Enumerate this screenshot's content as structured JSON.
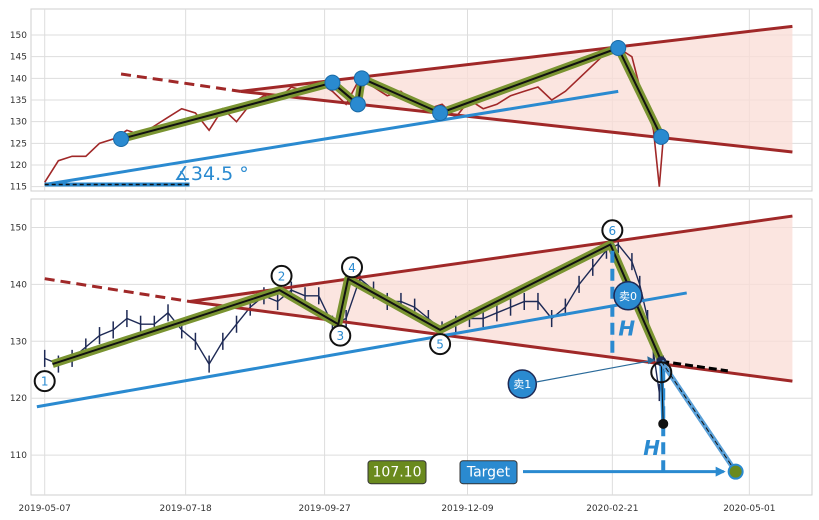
{
  "chart_data": [
    {
      "id": "top",
      "type": "line",
      "ylim": [
        114,
        156
      ],
      "yticks": [
        115,
        120,
        125,
        130,
        135,
        140,
        145,
        150
      ],
      "xlim": [
        "2019-04-30",
        "2020-06-02"
      ],
      "grid": true,
      "angle_label": "∡34.5 °",
      "series": [
        {
          "color": "#a02828",
          "x": [
            "2019-05-07",
            "2019-05-14",
            "2019-05-21",
            "2019-05-28",
            "2019-06-04",
            "2019-06-11",
            "2019-06-18",
            "2019-06-25",
            "2019-07-02",
            "2019-07-09",
            "2019-07-16",
            "2019-07-23",
            "2019-07-30",
            "2019-08-06",
            "2019-08-13",
            "2019-08-20",
            "2019-08-27",
            "2019-09-03",
            "2019-09-10",
            "2019-09-17",
            "2019-09-24",
            "2019-10-01",
            "2019-10-08",
            "2019-10-15",
            "2019-10-22",
            "2019-10-29",
            "2019-11-05",
            "2019-11-12",
            "2019-11-19",
            "2019-11-26",
            "2019-12-03",
            "2019-12-10",
            "2019-12-17",
            "2019-12-24",
            "2019-12-31",
            "2020-01-07",
            "2020-01-14",
            "2020-01-21",
            "2020-01-28",
            "2020-02-04",
            "2020-02-11",
            "2020-02-18",
            "2020-02-24",
            "2020-03-02",
            "2020-03-06",
            "2020-03-10",
            "2020-03-13",
            "2020-03-16",
            "2020-03-18"
          ],
          "values": [
            116,
            121,
            122,
            122,
            125,
            126,
            128,
            127,
            129,
            131,
            133,
            132,
            128,
            133,
            130,
            134,
            136,
            135,
            138,
            137,
            139,
            137,
            134,
            140,
            138,
            136,
            137,
            134,
            133,
            134,
            131,
            135,
            133,
            134,
            136,
            137,
            138,
            135,
            137,
            140,
            143,
            146,
            147,
            145,
            138,
            133,
            128,
            115,
            126
          ]
        }
      ],
      "wave": {
        "x": [
          "2019-06-15",
          "2019-10-01",
          "2019-10-14",
          "2019-10-16",
          "2019-11-25",
          "2020-02-24",
          "2020-03-17"
        ],
        "y": [
          126,
          139,
          134,
          140,
          132,
          147,
          126.5
        ]
      },
      "lines": [
        {
          "kind": "resistance",
          "color": "#a02828",
          "x": [
            "2019-08-15",
            "2020-05-23"
          ],
          "y": [
            137,
            152
          ]
        },
        {
          "kind": "support",
          "color": "#a02828",
          "x": [
            "2019-08-15",
            "2020-05-23"
          ],
          "y": [
            137,
            123
          ]
        },
        {
          "kind": "support-extension",
          "color": "#a02828",
          "dashed": true,
          "x": [
            "2019-06-15",
            "2019-08-15"
          ],
          "y": [
            141,
            137
          ]
        },
        {
          "kind": "trend",
          "color": "#2a8ad0",
          "x": [
            "2019-05-07",
            "2020-02-24"
          ],
          "y": [
            115.5,
            137
          ]
        },
        {
          "kind": "angle-base",
          "color": "#2a8ad0",
          "x": [
            "2019-05-07",
            "2019-07-20"
          ],
          "y": [
            115.5,
            115.5
          ]
        }
      ]
    },
    {
      "id": "bottom",
      "type": "line",
      "ylim": [
        103,
        155
      ],
      "yticks": [
        110,
        120,
        130,
        140,
        150
      ],
      "xlim": [
        "2019-04-30",
        "2020-06-02"
      ],
      "xticks": [
        "2019-05-07",
        "2019-07-18",
        "2019-09-27",
        "2019-12-09",
        "2020-02-21",
        "2020-05-01"
      ],
      "grid": true,
      "price": {
        "color": "#1e2a55",
        "x": [
          "2019-05-07",
          "2019-05-14",
          "2019-05-21",
          "2019-05-28",
          "2019-06-04",
          "2019-06-11",
          "2019-06-18",
          "2019-06-25",
          "2019-07-02",
          "2019-07-09",
          "2019-07-16",
          "2019-07-23",
          "2019-07-30",
          "2019-08-06",
          "2019-08-13",
          "2019-08-20",
          "2019-08-27",
          "2019-09-03",
          "2019-09-10",
          "2019-09-17",
          "2019-09-24",
          "2019-10-01",
          "2019-10-08",
          "2019-10-15",
          "2019-10-22",
          "2019-10-29",
          "2019-11-05",
          "2019-11-12",
          "2019-11-19",
          "2019-11-26",
          "2019-12-03",
          "2019-12-10",
          "2019-12-17",
          "2019-12-24",
          "2019-12-31",
          "2020-01-07",
          "2020-01-14",
          "2020-01-21",
          "2020-01-28",
          "2020-02-04",
          "2020-02-11",
          "2020-02-18",
          "2020-02-24",
          "2020-03-02",
          "2020-03-06",
          "2020-03-10",
          "2020-03-13",
          "2020-03-16",
          "2020-03-18"
        ],
        "values": [
          127,
          126,
          127,
          129,
          131,
          132,
          134,
          133,
          133,
          135,
          132,
          130,
          126,
          130,
          133,
          136,
          138,
          137,
          139,
          138,
          138,
          133,
          134,
          141,
          139,
          137,
          137,
          136,
          134,
          132,
          133,
          134,
          134,
          135,
          136,
          137,
          137,
          134,
          136,
          140,
          143,
          146,
          147,
          144,
          140,
          134,
          128,
          121,
          126
        ]
      },
      "wave": {
        "x": [
          "2019-05-11",
          "2019-09-04",
          "2019-10-04",
          "2019-10-09",
          "2019-11-25",
          "2020-02-20",
          "2020-03-17"
        ],
        "y": [
          126,
          139,
          133,
          141,
          132,
          147,
          126.5
        ]
      },
      "wave_labels": [
        {
          "text": "1",
          "x": "2019-05-07",
          "y": 123
        },
        {
          "text": "2",
          "x": "2019-09-05",
          "y": 141.5
        },
        {
          "text": "3",
          "x": "2019-10-05",
          "y": 131
        },
        {
          "text": "4",
          "x": "2019-10-11",
          "y": 143
        },
        {
          "text": "5",
          "x": "2019-11-25",
          "y": 129.5
        },
        {
          "text": "6",
          "x": "2020-02-21",
          "y": 149.5
        }
      ],
      "lines": [
        {
          "kind": "resistance",
          "color": "#a02828",
          "x": [
            "2019-07-20",
            "2020-05-23"
          ],
          "y": [
            137,
            152
          ]
        },
        {
          "kind": "support",
          "color": "#a02828",
          "x": [
            "2019-07-20",
            "2020-05-23"
          ],
          "y": [
            137,
            123
          ]
        },
        {
          "kind": "support-extension",
          "color": "#a02828",
          "dashed": true,
          "x": [
            "2019-05-07",
            "2019-07-20"
          ],
          "y": [
            141,
            137
          ]
        },
        {
          "kind": "trend",
          "color": "#2a8ad0",
          "x": [
            "2019-05-03",
            "2020-03-30"
          ],
          "y": [
            118.5,
            138.5
          ]
        },
        {
          "kind": "projection",
          "color": "#000000",
          "dashed": true,
          "x": [
            "2020-03-17",
            "2020-04-20"
          ],
          "y": [
            126.5,
            124.8
          ]
        }
      ],
      "target": {
        "x": "2020-04-24",
        "y": 107.1
      },
      "breakout": {
        "x": "2020-03-18",
        "y": 115.5
      },
      "h_vertical_1": {
        "x": "2020-02-21",
        "y": [
          128,
          147
        ]
      },
      "h_vertical_2": {
        "x": "2020-03-18",
        "y": [
          107,
          126.5
        ]
      },
      "sell_markers": [
        {
          "label": "卖0",
          "x": "2020-02-29",
          "y": 138
        },
        {
          "label": "卖1",
          "x": "2020-01-06",
          "y": 122.5
        }
      ],
      "h_label": "H",
      "target_label": "Target",
      "target_value": "107.10"
    }
  ]
}
